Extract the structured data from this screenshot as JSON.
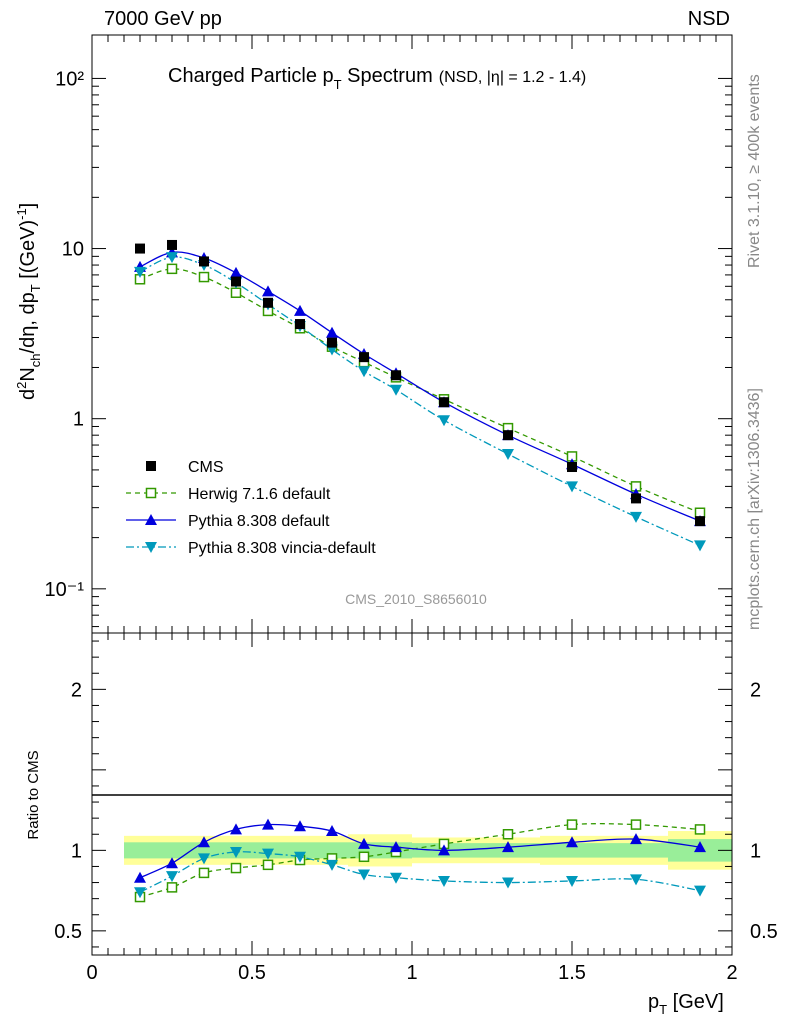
{
  "header": {
    "left": "7000 GeV pp",
    "right": "NSD"
  },
  "side_labels": {
    "rivet": "Rivet 3.1.10, ≥ 400k events",
    "mcplots": "mcplots.cern.ch [arXiv:1306.3436]"
  },
  "colors": {
    "cms": "#000000",
    "herwig": "#339900",
    "pythia": "#0000dd",
    "vincia": "#0099bb",
    "band_stat": "#99ee99",
    "band_syst": "#ffff99",
    "watermark": "#999999"
  },
  "chart_data": [
    {
      "type": "line",
      "title_main": "Charged Particle p",
      "title_sub": "T",
      "title_main2": " Spectrum",
      "title_small": "(NSD, |η| = 1.2 - 1.4)",
      "watermark": "CMS_2010_S8656010",
      "ylabel": "d²N_ch/dη, dp_T [(GeV)⁻¹]",
      "yscale": "log",
      "ylim": [
        0.055,
        180
      ],
      "xlim": [
        0,
        2
      ],
      "ytick_labels": [
        "10⁻¹",
        "1",
        "10",
        "10²"
      ],
      "legend_position": "bottom-left",
      "x": [
        0.15,
        0.25,
        0.35,
        0.45,
        0.55,
        0.65,
        0.75,
        0.85,
        0.95,
        1.1,
        1.3,
        1.5,
        1.7,
        1.9
      ],
      "series": [
        {
          "name": "CMS",
          "marker": "square-filled",
          "values": [
            10.0,
            10.5,
            8.4,
            6.4,
            4.8,
            3.6,
            2.8,
            2.3,
            1.8,
            1.25,
            0.8,
            0.52,
            0.34,
            0.25
          ]
        },
        {
          "name": "Herwig 7.1.6 default",
          "marker": "square-open",
          "line": "dashed",
          "values": [
            6.6,
            7.6,
            6.8,
            5.5,
            4.3,
            3.4,
            2.65,
            2.15,
            1.75,
            1.3,
            0.88,
            0.6,
            0.4,
            0.28
          ]
        },
        {
          "name": "Pythia 8.308 default",
          "marker": "triangle-up",
          "line": "solid",
          "values": [
            7.8,
            9.5,
            8.8,
            7.2,
            5.6,
            4.3,
            3.2,
            2.4,
            1.85,
            1.25,
            0.8,
            0.54,
            0.36,
            0.25
          ]
        },
        {
          "name": "Pythia 8.308 vincia-default",
          "marker": "triangle-down",
          "line": "dashdot",
          "values": [
            7.3,
            8.9,
            8.0,
            6.3,
            4.7,
            3.5,
            2.55,
            1.9,
            1.48,
            0.98,
            0.62,
            0.4,
            0.265,
            0.18
          ]
        }
      ]
    },
    {
      "type": "line",
      "xlabel": "p_T [GeV]",
      "ylabel": "Ratio to CMS",
      "ylim": [
        0.35,
        2.35
      ],
      "xlim": [
        0,
        2
      ],
      "ytick_labels": [
        "0.5",
        "1",
        "2"
      ],
      "xtick_labels": [
        "0",
        "0.5",
        "1",
        "1.5",
        "2"
      ],
      "x": [
        0.15,
        0.25,
        0.35,
        0.45,
        0.55,
        0.65,
        0.75,
        0.85,
        0.95,
        1.1,
        1.3,
        1.5,
        1.7,
        1.9
      ],
      "bands": {
        "edges": [
          0.1,
          0.2,
          0.3,
          0.4,
          0.5,
          0.6,
          0.7,
          0.8,
          0.9,
          1.0,
          1.2,
          1.4,
          1.6,
          1.8,
          2.0
        ],
        "stat": [
          0.05,
          0.05,
          0.05,
          0.05,
          0.05,
          0.05,
          0.05,
          0.05,
          0.05,
          0.045,
          0.045,
          0.045,
          0.045,
          0.07
        ],
        "syst": [
          0.09,
          0.09,
          0.09,
          0.09,
          0.09,
          0.09,
          0.09,
          0.1,
          0.1,
          0.08,
          0.08,
          0.09,
          0.09,
          0.12
        ]
      },
      "series": [
        {
          "name": "Herwig 7.1.6 default",
          "marker": "square-open",
          "line": "dashed",
          "values": [
            0.71,
            0.77,
            0.86,
            0.89,
            0.91,
            0.94,
            0.95,
            0.96,
            0.99,
            1.04,
            1.1,
            1.16,
            1.16,
            1.13
          ]
        },
        {
          "name": "Pythia 8.308 default",
          "marker": "triangle-up",
          "line": "solid",
          "values": [
            0.83,
            0.92,
            1.05,
            1.13,
            1.16,
            1.15,
            1.12,
            1.04,
            1.02,
            1.0,
            1.02,
            1.05,
            1.07,
            1.02
          ]
        },
        {
          "name": "Pythia 8.308 vincia-default",
          "marker": "triangle-down",
          "line": "dashdot",
          "values": [
            0.74,
            0.84,
            0.95,
            0.99,
            0.98,
            0.96,
            0.91,
            0.85,
            0.83,
            0.81,
            0.8,
            0.81,
            0.82,
            0.75
          ]
        }
      ]
    }
  ]
}
